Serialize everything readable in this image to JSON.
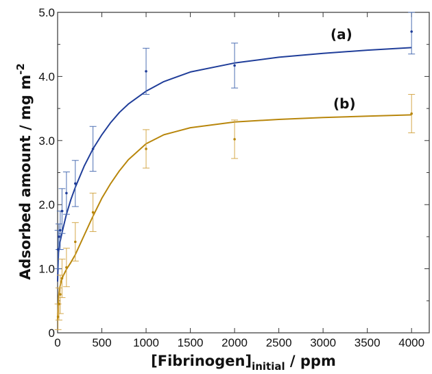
{
  "chart_data": {
    "type": "scatter",
    "xlabel": "[Fibrinogen]",
    "xlabel_subscript": "initial",
    "xlabel_unit": " / ppm",
    "ylabel": "Adsorbed amount / mg m",
    "ylabel_superscript": "-2",
    "xlim": [
      0,
      4200
    ],
    "ylim": [
      0,
      5.0
    ],
    "x_ticks": [
      0,
      500,
      1000,
      1500,
      2000,
      2500,
      3000,
      3500,
      4000
    ],
    "x_tick_labels": [
      "0",
      "500",
      "1000",
      "1500",
      "2000",
      "2500",
      "3000",
      "3500",
      "4000"
    ],
    "y_ticks": [
      0,
      1.0,
      2.0,
      3.0,
      4.0,
      5.0
    ],
    "y_tick_labels": [
      "0",
      "1.0",
      "2.0",
      "3.0",
      "4.0",
      "5.0"
    ],
    "grid": false,
    "legend": "none",
    "series": [
      {
        "name": "(a)",
        "color": "#1f3d99",
        "error_color": "#4d6fb3",
        "points": [
          {
            "x": 5,
            "y": 1.3,
            "err": 0.3
          },
          {
            "x": 15,
            "y": 1.5,
            "err": 0.2
          },
          {
            "x": 30,
            "y": 1.6,
            "err": 0.3
          },
          {
            "x": 50,
            "y": 1.9,
            "err": 0.35
          },
          {
            "x": 100,
            "y": 2.18,
            "err": 0.33
          },
          {
            "x": 200,
            "y": 2.33,
            "err": 0.36
          },
          {
            "x": 400,
            "y": 2.87,
            "err": 0.35
          },
          {
            "x": 1000,
            "y": 4.08,
            "err": 0.36
          },
          {
            "x": 2000,
            "y": 4.17,
            "err": 0.35
          },
          {
            "x": 4000,
            "y": 4.7,
            "err": 0.35
          }
        ],
        "curve": [
          [
            0,
            0.8
          ],
          [
            10,
            1.25
          ],
          [
            20,
            1.37
          ],
          [
            40,
            1.5
          ],
          [
            60,
            1.62
          ],
          [
            100,
            1.85
          ],
          [
            150,
            2.08
          ],
          [
            200,
            2.27
          ],
          [
            300,
            2.6
          ],
          [
            400,
            2.87
          ],
          [
            500,
            3.09
          ],
          [
            600,
            3.28
          ],
          [
            700,
            3.44
          ],
          [
            800,
            3.57
          ],
          [
            1000,
            3.77
          ],
          [
            1200,
            3.92
          ],
          [
            1500,
            4.07
          ],
          [
            2000,
            4.21
          ],
          [
            2500,
            4.3
          ],
          [
            3000,
            4.36
          ],
          [
            3500,
            4.41
          ],
          [
            4000,
            4.45
          ]
        ]
      },
      {
        "name": "(b)",
        "color": "#b8860b",
        "error_color": "#d4a84a",
        "points": [
          {
            "x": 5,
            "y": 0.25,
            "err": 0.2
          },
          {
            "x": 15,
            "y": 0.45,
            "err": 0.25
          },
          {
            "x": 30,
            "y": 0.6,
            "err": 0.3
          },
          {
            "x": 50,
            "y": 0.85,
            "err": 0.3
          },
          {
            "x": 100,
            "y": 1.02,
            "err": 0.3
          },
          {
            "x": 200,
            "y": 1.42,
            "err": 0.3
          },
          {
            "x": 400,
            "y": 1.88,
            "err": 0.3
          },
          {
            "x": 1000,
            "y": 2.87,
            "err": 0.3
          },
          {
            "x": 2000,
            "y": 3.02,
            "err": 0.3
          },
          {
            "x": 4000,
            "y": 3.42,
            "err": 0.3
          }
        ],
        "curve": [
          [
            0,
            0.2
          ],
          [
            10,
            0.55
          ],
          [
            20,
            0.68
          ],
          [
            40,
            0.8
          ],
          [
            60,
            0.88
          ],
          [
            100,
            0.99
          ],
          [
            150,
            1.1
          ],
          [
            200,
            1.22
          ],
          [
            300,
            1.52
          ],
          [
            400,
            1.82
          ],
          [
            500,
            2.1
          ],
          [
            600,
            2.33
          ],
          [
            700,
            2.53
          ],
          [
            800,
            2.7
          ],
          [
            1000,
            2.95
          ],
          [
            1200,
            3.09
          ],
          [
            1500,
            3.2
          ],
          [
            2000,
            3.29
          ],
          [
            2500,
            3.33
          ],
          [
            3000,
            3.36
          ],
          [
            3500,
            3.38
          ],
          [
            4000,
            3.4
          ]
        ]
      }
    ],
    "annotations": [
      {
        "text": "(a)",
        "series": 0
      },
      {
        "text": "(b)",
        "series": 1
      }
    ]
  }
}
